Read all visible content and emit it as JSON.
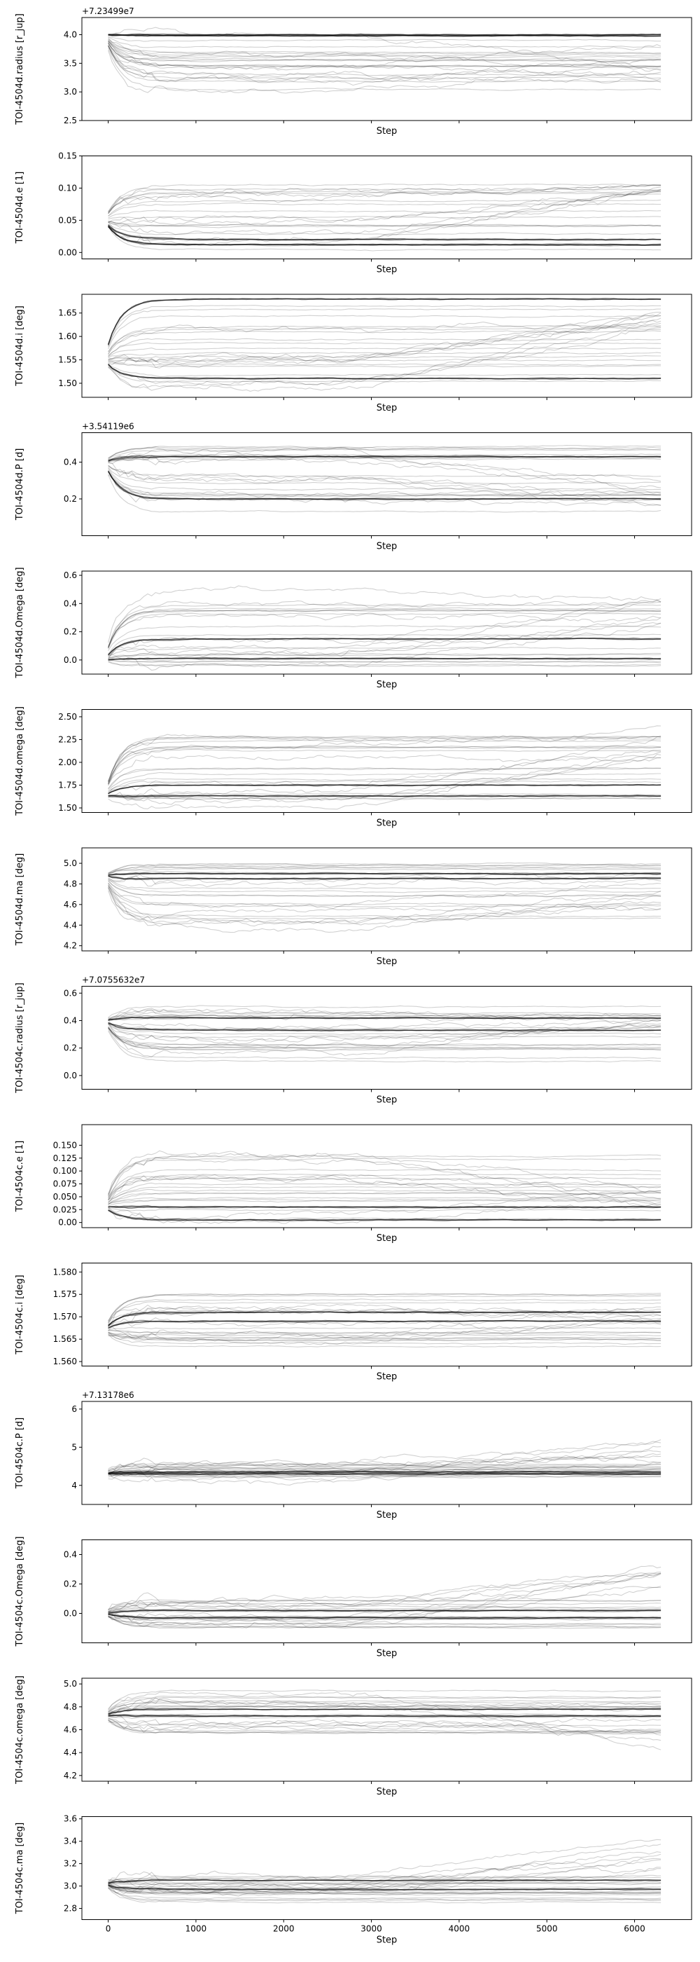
{
  "chart_data": {
    "type": "line",
    "description": "MCMC walker trace plots, 14 stacked panels sharing the x axis (Step)",
    "xlabel": "Step",
    "xlim": [
      -300,
      6650
    ],
    "x_ticks": [
      0,
      1000,
      2000,
      3000,
      4000,
      5000,
      6000
    ],
    "x_tick_labels": [
      "0",
      "1000",
      "2000",
      "3000",
      "4000",
      "5000",
      "6000"
    ],
    "n_steps": 6300,
    "line_color": "#000000",
    "panels": [
      {
        "ylabel": "TOI-4504d.radius [r_jup]",
        "offset": "+7.23499e7",
        "ylim": [
          2.5,
          4.3
        ],
        "y_ticks": [
          2.5,
          3.0,
          3.5,
          4.0
        ],
        "y_tick_labels": [
          "2.5",
          "3.0",
          "3.5",
          "4.0"
        ],
        "start": 4.0,
        "level_min": 2.95,
        "level_max": 4.05,
        "drift": [
          3.1,
          3.9
        ],
        "thick": [
          4.0,
          3.98
        ]
      },
      {
        "ylabel": "TOI-4504d.e [1]",
        "offset": "",
        "ylim": [
          -0.01,
          0.15
        ],
        "y_ticks": [
          0.0,
          0.05,
          0.1,
          0.15
        ],
        "y_tick_labels": [
          "0.00",
          "0.05",
          "0.10",
          "0.15"
        ],
        "start": 0.05,
        "level_min": 0.0,
        "level_max": 0.105,
        "drift": [
          0.1,
          0.105
        ],
        "thick": [
          0.012,
          0.02
        ]
      },
      {
        "ylabel": "TOI-4504d.i [deg]",
        "offset": "",
        "ylim": [
          1.47,
          1.69
        ],
        "y_ticks": [
          1.5,
          1.55,
          1.6,
          1.65
        ],
        "y_tick_labels": [
          "1.50",
          "1.55",
          "1.60",
          "1.65"
        ],
        "start": 1.55,
        "level_min": 1.48,
        "level_max": 1.68,
        "drift": [
          1.62,
          1.675
        ],
        "thick": [
          1.51,
          1.68
        ]
      },
      {
        "ylabel": "TOI-4504d.P [d]",
        "offset": "+3.54119e6",
        "ylim": [
          0.0,
          0.56
        ],
        "y_ticks": [
          0.2,
          0.4
        ],
        "y_tick_labels": [
          "0.2",
          "0.4"
        ],
        "start": 0.4,
        "level_min": 0.12,
        "level_max": 0.49,
        "drift": [
          0.15,
          0.3
        ],
        "thick": [
          0.2,
          0.43
        ]
      },
      {
        "ylabel": "TOI-4504d.Omega [deg]",
        "offset": "",
        "ylim": [
          -0.1,
          0.63
        ],
        "y_ticks": [
          0.0,
          0.2,
          0.4,
          0.6
        ],
        "y_tick_labels": [
          "0.0",
          "0.2",
          "0.4",
          "0.6"
        ],
        "start": 0.0,
        "level_min": -0.05,
        "level_max": 0.5,
        "drift": [
          0.2,
          0.48
        ],
        "thick": [
          0.15,
          0.01
        ]
      },
      {
        "ylabel": "TOI-4504d.omega [deg]",
        "offset": "",
        "ylim": [
          1.45,
          2.58
        ],
        "y_ticks": [
          1.5,
          1.75,
          2.0,
          2.25,
          2.5
        ],
        "y_tick_labels": [
          "1.50",
          "1.75",
          "2.00",
          "2.25",
          "2.50"
        ],
        "start": 1.63,
        "level_min": 1.5,
        "level_max": 2.3,
        "drift": [
          2.0,
          2.35
        ],
        "thick": [
          1.75,
          1.63
        ]
      },
      {
        "ylabel": "TOI-4504d.ma [deg]",
        "offset": "",
        "ylim": [
          4.15,
          5.15
        ],
        "y_ticks": [
          4.2,
          4.4,
          4.6,
          4.8,
          5.0
        ],
        "y_tick_labels": [
          "4.2",
          "4.4",
          "4.6",
          "4.8",
          "5.0"
        ],
        "start": 4.88,
        "level_min": 4.35,
        "level_max": 5.0,
        "drift": [
          4.5,
          4.9
        ],
        "thick": [
          4.85,
          4.9
        ]
      },
      {
        "ylabel": "TOI-4504c.radius [r_jup]",
        "offset": "+7.0755632e7",
        "ylim": [
          -0.1,
          0.65
        ],
        "y_ticks": [
          0.0,
          0.2,
          0.4,
          0.6
        ],
        "y_tick_labels": [
          "0.0",
          "0.2",
          "0.4",
          "0.6"
        ],
        "start": 0.4,
        "level_min": 0.1,
        "level_max": 0.5,
        "drift": [
          0.3,
          0.5
        ],
        "thick": [
          0.33,
          0.42
        ]
      },
      {
        "ylabel": "TOI-4504c.e [1]",
        "offset": "",
        "ylim": [
          -0.01,
          0.19
        ],
        "y_ticks": [
          0.0,
          0.025,
          0.05,
          0.075,
          0.1,
          0.125,
          0.15
        ],
        "y_tick_labels": [
          "0.00",
          "0.025",
          "0.050",
          "0.075",
          "0.100",
          "0.125",
          "0.150"
        ],
        "start": 0.03,
        "level_min": 0.0,
        "level_max": 0.14,
        "drift": [
          0.02,
          0.08
        ],
        "thick": [
          0.005,
          0.03
        ]
      },
      {
        "ylabel": "TOI-4504c.i [deg]",
        "offset": "",
        "ylim": [
          1.559,
          1.582
        ],
        "y_ticks": [
          1.56,
          1.565,
          1.57,
          1.575,
          1.58
        ],
        "y_tick_labels": [
          "1.560",
          "1.565",
          "1.570",
          "1.575",
          "1.580"
        ],
        "start": 1.567,
        "level_min": 1.563,
        "level_max": 1.576,
        "drift": [
          1.568,
          1.573
        ],
        "thick": [
          1.571,
          1.569
        ]
      },
      {
        "ylabel": "TOI-4504c.P [d]",
        "offset": "+7.13178e6",
        "ylim": [
          3.5,
          6.2
        ],
        "y_ticks": [
          4,
          5,
          6
        ],
        "y_tick_labels": [
          "4",
          "5",
          "6"
        ],
        "start": 4.3,
        "level_min": 4.1,
        "level_max": 4.6,
        "drift": [
          4.6,
          5.3
        ],
        "thick": [
          4.3,
          4.35
        ]
      },
      {
        "ylabel": "TOI-4504c.Omega [deg]",
        "offset": "",
        "ylim": [
          -0.2,
          0.5
        ],
        "y_ticks": [
          0.0,
          0.2,
          0.4
        ],
        "y_tick_labels": [
          "0.0",
          "0.2",
          "0.4"
        ],
        "start": 0.0,
        "level_min": -0.1,
        "level_max": 0.1,
        "drift": [
          0.15,
          0.35
        ],
        "thick": [
          -0.03,
          0.02
        ]
      },
      {
        "ylabel": "TOI-4504c.omega [deg]",
        "offset": "",
        "ylim": [
          4.15,
          5.05
        ],
        "y_ticks": [
          4.2,
          4.4,
          4.6,
          4.8,
          5.0
        ],
        "y_tick_labels": [
          "4.2",
          "4.4",
          "4.6",
          "4.8",
          "5.0"
        ],
        "start": 4.72,
        "level_min": 4.55,
        "level_max": 4.95,
        "drift": [
          4.35,
          4.95
        ],
        "thick": [
          4.78,
          4.72
        ]
      },
      {
        "ylabel": "TOI-4504c.ma [deg]",
        "offset": "",
        "ylim": [
          2.7,
          3.62
        ],
        "y_ticks": [
          2.8,
          3.0,
          3.2,
          3.4,
          3.6
        ],
        "y_tick_labels": [
          "2.8",
          "3.0",
          "3.2",
          "3.4",
          "3.6"
        ],
        "start": 3.02,
        "level_min": 2.85,
        "level_max": 3.1,
        "drift": [
          3.15,
          3.45
        ],
        "thick": [
          2.97,
          3.05
        ]
      }
    ]
  }
}
